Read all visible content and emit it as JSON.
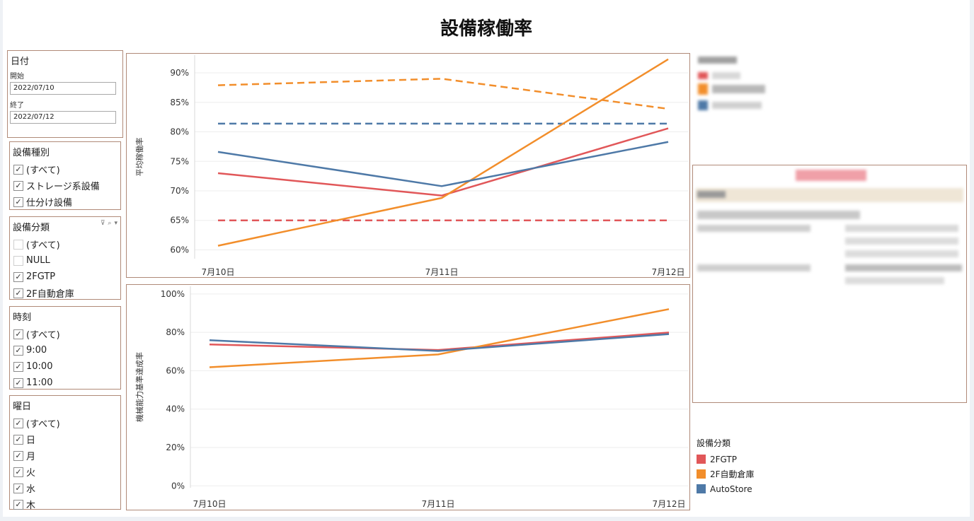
{
  "title": "設備稼働率",
  "filters": {
    "date": {
      "title": "日付",
      "start_label": "開始",
      "start_value": "2022/07/10",
      "end_label": "終了",
      "end_value": "2022/07/12"
    },
    "equipment_type": {
      "title": "設備種別",
      "items": [
        {
          "label": "(すべて)",
          "checked": true
        },
        {
          "label": "ストレージ系設備",
          "checked": true
        },
        {
          "label": "仕分け設備",
          "checked": true
        }
      ]
    },
    "equipment_class": {
      "title": "設備分類",
      "items": [
        {
          "label": "(すべて)",
          "checked": false
        },
        {
          "label": "NULL",
          "checked": false
        },
        {
          "label": "2FGTP",
          "checked": true
        },
        {
          "label": "2F自動倉庫",
          "checked": true
        }
      ]
    },
    "time": {
      "title": "時刻",
      "items": [
        {
          "label": "(すべて)",
          "checked": true
        },
        {
          "label": "9:00",
          "checked": true
        },
        {
          "label": "10:00",
          "checked": true
        },
        {
          "label": "11:00",
          "checked": true
        }
      ]
    },
    "weekday": {
      "title": "曜日",
      "items": [
        {
          "label": "(すべて)",
          "checked": true
        },
        {
          "label": "日",
          "checked": true
        },
        {
          "label": "月",
          "checked": true
        },
        {
          "label": "火",
          "checked": true
        },
        {
          "label": "水",
          "checked": true
        },
        {
          "label": "木",
          "checked": true
        }
      ]
    }
  },
  "legend": {
    "title": "設備分類",
    "items": [
      {
        "label": "2FGTP",
        "color": "#e15759"
      },
      {
        "label": "2F自動倉庫",
        "color": "#f28e2b"
      },
      {
        "label": "AutoStore",
        "color": "#4e79a7"
      }
    ]
  },
  "chart_data": [
    {
      "type": "line",
      "ylabel": "平均稼働率",
      "categories": [
        "7月10日",
        "7月11日",
        "7月12日"
      ],
      "ylim": [
        58.5,
        93
      ],
      "yticks": [
        60,
        65,
        70,
        75,
        80,
        85,
        90
      ],
      "ytick_labels": [
        "60%",
        "65%",
        "70%",
        "75%",
        "80%",
        "85%",
        "90%"
      ],
      "series": [
        {
          "name": "2FGTP",
          "color": "#e15759",
          "values": [
            73,
            69.2,
            80.6
          ]
        },
        {
          "name": "2F自動倉庫",
          "color": "#f28e2b",
          "values": [
            60.7,
            68.8,
            92.3
          ]
        },
        {
          "name": "AutoStore",
          "color": "#4e79a7",
          "values": [
            76.6,
            70.8,
            78.3
          ]
        }
      ],
      "reference_lines": [
        {
          "color": "#f28e2b",
          "values": [
            87.9,
            89,
            83.9
          ]
        },
        {
          "color": "#4e79a7",
          "values": [
            81.4,
            81.4,
            81.4
          ]
        },
        {
          "color": "#e15759",
          "values": [
            65,
            65,
            65
          ]
        }
      ]
    },
    {
      "type": "line",
      "ylabel": "機械能力基準達成率",
      "categories": [
        "7月10日",
        "7月11日",
        "7月12日"
      ],
      "ylim": [
        -1,
        104
      ],
      "yticks": [
        0,
        20,
        40,
        60,
        80,
        100
      ],
      "ytick_labels": [
        "0%",
        "20%",
        "40%",
        "60%",
        "80%",
        "100%"
      ],
      "series": [
        {
          "name": "2FGTP",
          "color": "#e15759",
          "values": [
            73.7,
            70.8,
            79.9
          ]
        },
        {
          "name": "2F自動倉庫",
          "color": "#f28e2b",
          "values": [
            61.8,
            68.5,
            92.1
          ]
        },
        {
          "name": "AutoStore",
          "color": "#4e79a7",
          "values": [
            75.9,
            70.3,
            79.1
          ]
        }
      ]
    }
  ]
}
